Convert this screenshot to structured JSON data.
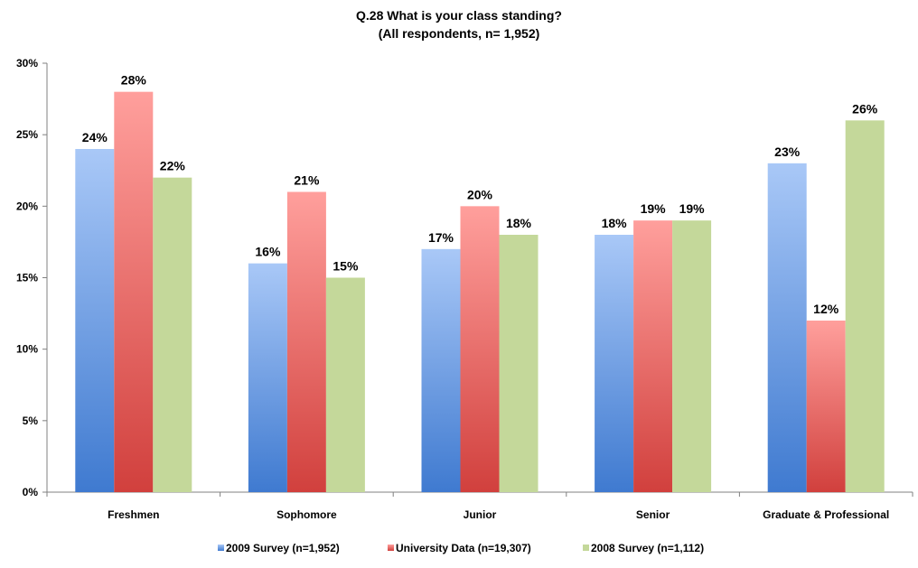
{
  "chart_data": {
    "type": "bar",
    "title": "Q.28 What is your class standing?",
    "subtitle": "(All respondents,  n= 1,952)",
    "xlabel": "",
    "ylabel": "",
    "ylim": [
      0,
      30
    ],
    "y_ticks": [
      0,
      5,
      10,
      15,
      20,
      25,
      30
    ],
    "y_tick_labels": [
      "0%",
      "5%",
      "10%",
      "15%",
      "20%",
      "25%",
      "30%"
    ],
    "grid": false,
    "legend_position": "bottom",
    "categories": [
      "Freshmen",
      "Sophomore",
      "Junior",
      "Senior",
      "Graduate & Professional"
    ],
    "series": [
      {
        "name": "2009 Survey (n=1,952)",
        "values": [
          24,
          16,
          17,
          18,
          23
        ],
        "labels": [
          "24%",
          "16%",
          "17%",
          "18%",
          "23%"
        ],
        "color_top": "#a9c8f7",
        "color_bottom": "#3f7ad0"
      },
      {
        "name": "University Data (n=19,307)",
        "values": [
          28,
          21,
          20,
          19,
          12
        ],
        "labels": [
          "28%",
          "21%",
          "20%",
          "19%",
          "12%"
        ],
        "color_top": "#ff9f9c",
        "color_bottom": "#d1403d"
      },
      {
        "name": "2008 Survey (n=1,112)",
        "values": [
          22,
          15,
          18,
          19,
          26
        ],
        "labels": [
          "22%",
          "15%",
          "18%",
          "19%",
          "26%"
        ],
        "color_top": "#c4d89a",
        "color_bottom": "#c4d89a"
      }
    ]
  }
}
